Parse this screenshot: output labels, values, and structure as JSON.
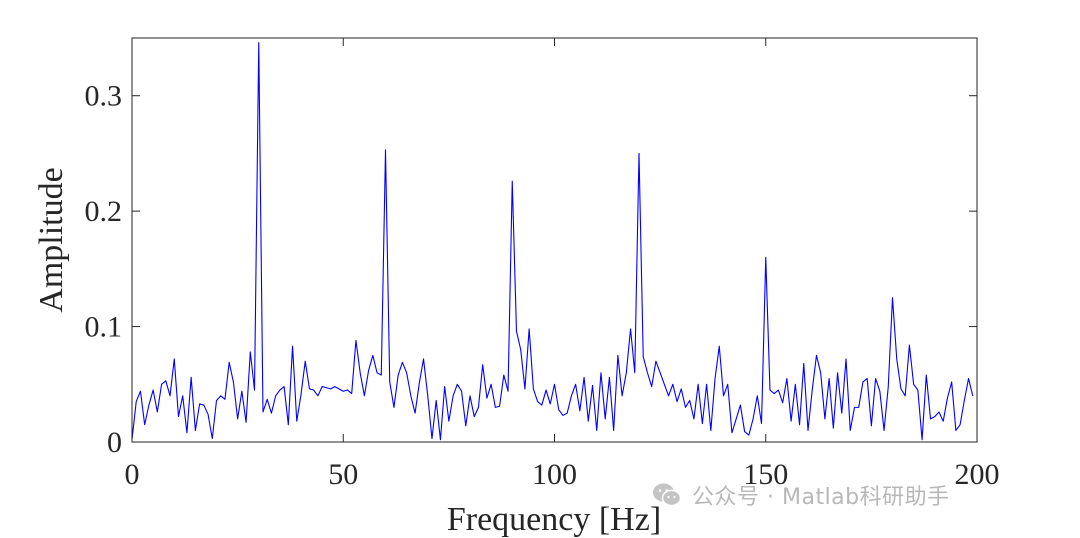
{
  "chart_data": {
    "type": "line",
    "title": "",
    "xlabel": "Frequency [Hz]",
    "ylabel": "Amplitude",
    "xlim": [
      0,
      200
    ],
    "ylim": [
      0,
      0.35
    ],
    "x_ticks": [
      0,
      50,
      100,
      150,
      200
    ],
    "y_ticks": [
      0,
      0.1,
      0.2,
      0.3
    ],
    "x_tick_labels": [
      "0",
      "50",
      "100",
      "150",
      "200"
    ],
    "y_tick_labels": [
      "0",
      "0.1",
      "0.2",
      "0.3"
    ],
    "grid": false,
    "box": true,
    "series": [
      {
        "color": "#0000ff",
        "x_step": 1,
        "x_start": 0,
        "values": [
          0.002,
          0.035,
          0.044,
          0.015,
          0.032,
          0.045,
          0.026,
          0.05,
          0.053,
          0.04,
          0.072,
          0.022,
          0.04,
          0.008,
          0.056,
          0.01,
          0.033,
          0.032,
          0.024,
          0.003,
          0.036,
          0.04,
          0.037,
          0.069,
          0.052,
          0.02,
          0.044,
          0.017,
          0.078,
          0.045,
          0.346,
          0.026,
          0.037,
          0.025,
          0.04,
          0.045,
          0.048,
          0.015,
          0.083,
          0.018,
          0.041,
          0.07,
          0.046,
          0.045,
          0.04,
          0.048,
          0.047,
          0.046,
          0.048,
          0.046,
          0.044,
          0.045,
          0.042,
          0.088,
          0.06,
          0.04,
          0.062,
          0.075,
          0.06,
          0.058,
          0.253,
          0.052,
          0.03,
          0.058,
          0.069,
          0.06,
          0.04,
          0.025,
          0.051,
          0.072,
          0.04,
          0.003,
          0.036,
          0.002,
          0.048,
          0.018,
          0.04,
          0.05,
          0.044,
          0.014,
          0.04,
          0.022,
          0.03,
          0.067,
          0.038,
          0.05,
          0.03,
          0.031,
          0.058,
          0.044,
          0.226,
          0.096,
          0.08,
          0.046,
          0.098,
          0.046,
          0.035,
          0.032,
          0.045,
          0.033,
          0.05,
          0.028,
          0.023,
          0.025,
          0.04,
          0.05,
          0.027,
          0.056,
          0.018,
          0.049,
          0.01,
          0.06,
          0.02,
          0.056,
          0.01,
          0.075,
          0.04,
          0.06,
          0.098,
          0.06,
          0.25,
          0.074,
          0.06,
          0.048,
          0.07,
          0.06,
          0.05,
          0.04,
          0.05,
          0.035,
          0.046,
          0.03,
          0.036,
          0.02,
          0.05,
          0.016,
          0.05,
          0.01,
          0.055,
          0.083,
          0.04,
          0.05,
          0.008,
          0.02,
          0.032,
          0.009,
          0.006,
          0.02,
          0.04,
          0.016,
          0.16,
          0.045,
          0.042,
          0.045,
          0.034,
          0.055,
          0.018,
          0.05,
          0.015,
          0.068,
          0.01,
          0.045,
          0.075,
          0.06,
          0.02,
          0.055,
          0.012,
          0.06,
          0.025,
          0.072,
          0.01,
          0.03,
          0.03,
          0.052,
          0.055,
          0.014,
          0.055,
          0.044,
          0.01,
          0.048,
          0.125,
          0.072,
          0.046,
          0.04,
          0.084,
          0.05,
          0.045,
          0.002,
          0.058,
          0.02,
          0.022,
          0.026,
          0.018,
          0.038,
          0.052,
          0.01,
          0.015,
          0.036,
          0.055,
          0.04
        ]
      }
    ]
  },
  "watermark": {
    "icon": "wechat-icon",
    "text": "公众号 · Matlab科研助手"
  }
}
